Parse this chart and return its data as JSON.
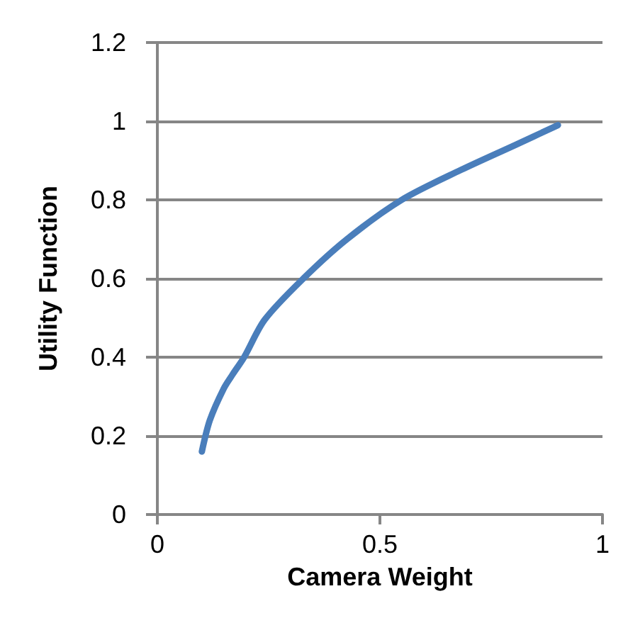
{
  "chart_data": {
    "type": "line",
    "xlabel": "Camera Weight",
    "ylabel": "Utility Function",
    "x": [
      0.1,
      0.118,
      0.149,
      0.169,
      0.195,
      0.241,
      0.328,
      0.426,
      0.549,
      0.682,
      0.805,
      0.9
    ],
    "series": [
      {
        "color": "#4a7ebb",
        "values": [
          0.16,
          0.24,
          0.32,
          0.356,
          0.4,
          0.495,
          0.6,
          0.7,
          0.8,
          0.876,
          0.94,
          0.99
        ]
      }
    ],
    "xlim": [
      0,
      1
    ],
    "xticks": [
      0,
      0.5,
      1
    ],
    "ylim": [
      0,
      1.2
    ],
    "yticks": [
      0,
      0.2,
      0.4,
      0.6,
      0.8,
      1,
      1.2
    ],
    "grid": "y",
    "marker": "none",
    "line_style": "solid"
  }
}
